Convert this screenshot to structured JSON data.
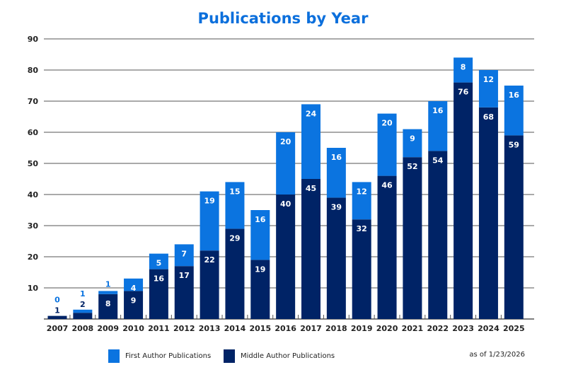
{
  "chart_data": {
    "type": "bar",
    "stacked": true,
    "title": "Publications by Year",
    "categories": [
      "2007",
      "2008",
      "2009",
      "2010",
      "2011",
      "2012",
      "2013",
      "2014",
      "2015",
      "2016",
      "2017",
      "2018",
      "2019",
      "2020",
      "2021",
      "2022",
      "2023",
      "2024",
      "2025"
    ],
    "series": [
      {
        "name": "Middle Author Publications",
        "color": "#002366",
        "values": [
          1,
          2,
          8,
          9,
          16,
          17,
          22,
          29,
          19,
          40,
          45,
          39,
          32,
          46,
          52,
          54,
          76,
          68,
          59
        ]
      },
      {
        "name": "First Author Publications",
        "color": "#0b74e0",
        "values": [
          0,
          1,
          1,
          4,
          5,
          7,
          19,
          15,
          16,
          20,
          24,
          16,
          12,
          20,
          9,
          16,
          8,
          12,
          16
        ]
      }
    ],
    "ylim": [
      0,
      90
    ],
    "yticks": [
      10,
      20,
      30,
      40,
      50,
      60,
      70,
      80,
      90
    ],
    "grid": true,
    "legend": "bottom",
    "note": "as of 1/23/2026"
  }
}
